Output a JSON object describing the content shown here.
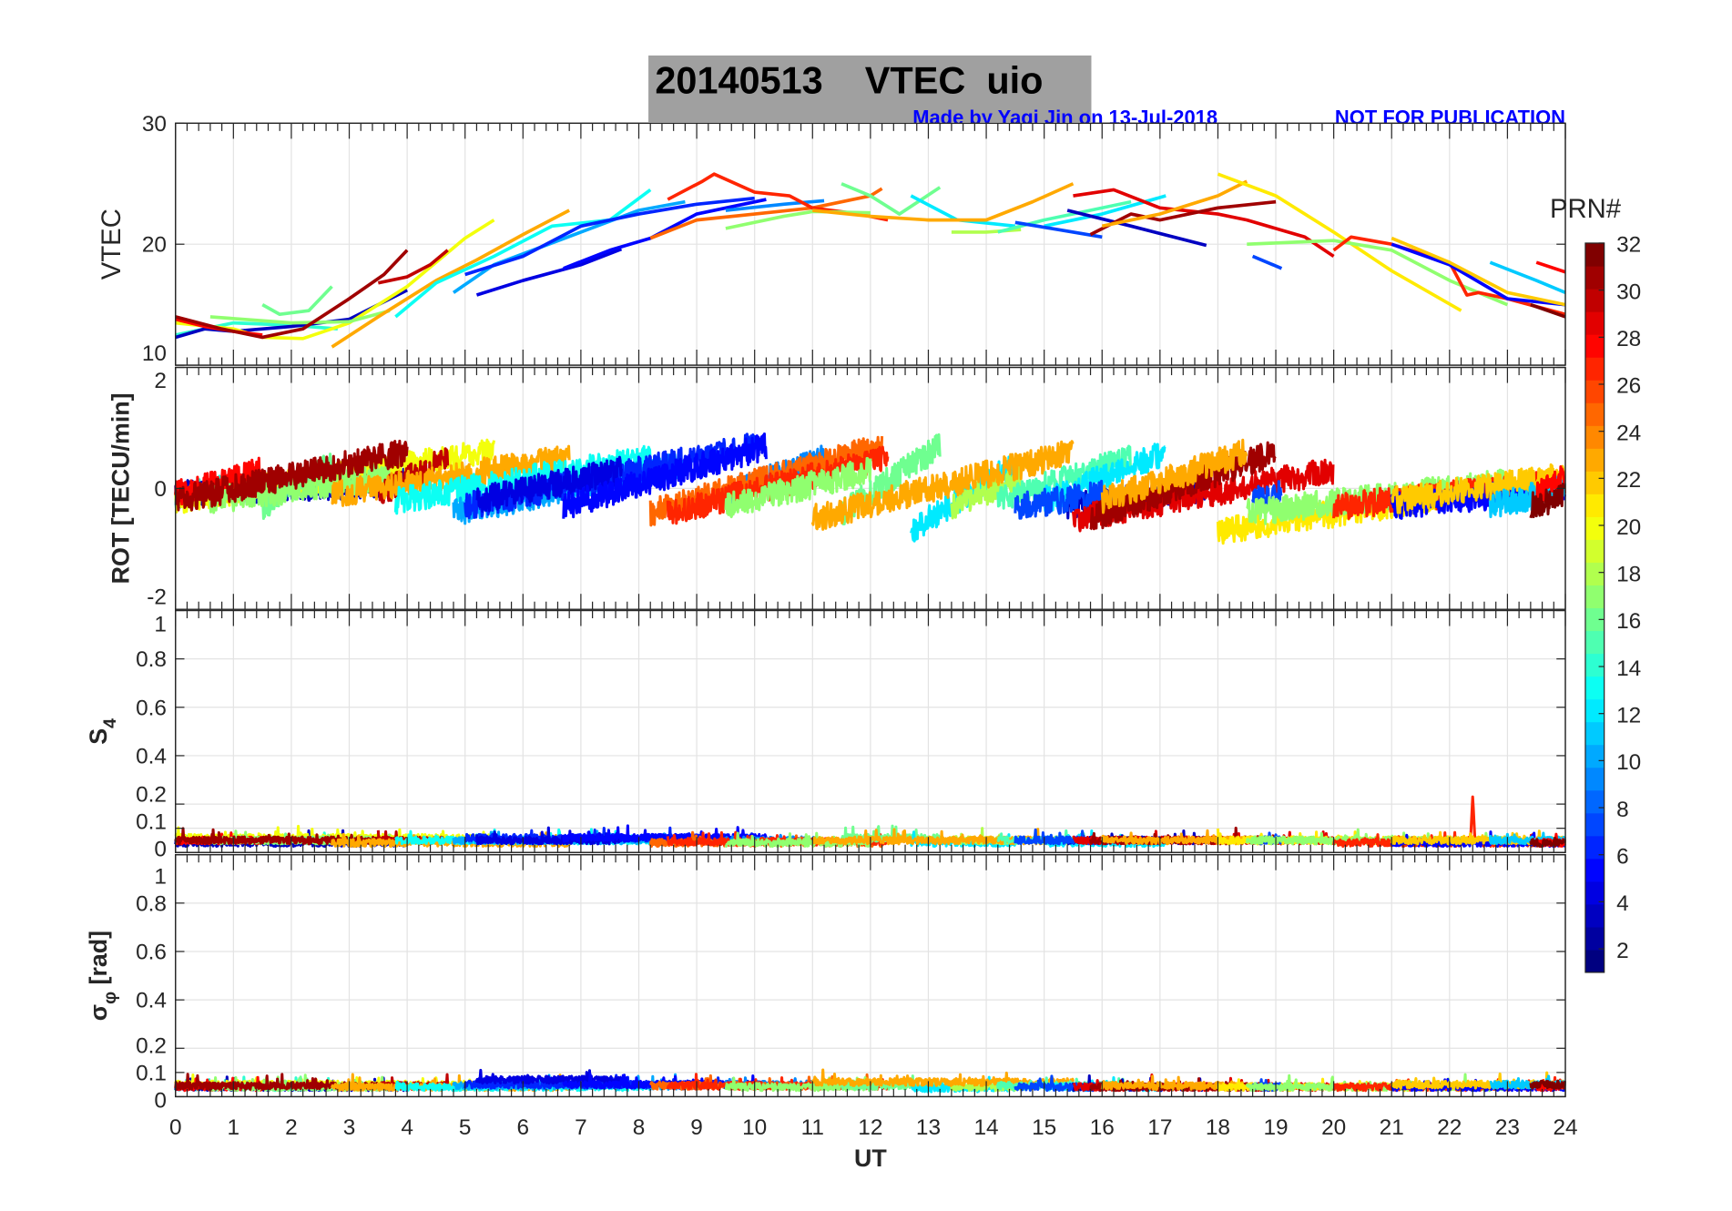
{
  "header": {
    "title": "20140513    VTEC  uio",
    "author_note": "Made by Yaqi Jin on 13-Jul-2018",
    "disclaimer": "NOT FOR PUBLICATION"
  },
  "colors": {
    "title_bg": "#a0a0a0",
    "note": "#0000ff",
    "grid": "#e3e3e3",
    "axis": "#262626"
  },
  "chart_data": {
    "type": "line",
    "title": "20140513    VTEC  uio",
    "xlabel": "UT",
    "xlim": [
      0,
      24
    ],
    "xticks": [
      0,
      1,
      2,
      3,
      4,
      5,
      6,
      7,
      8,
      9,
      10,
      11,
      12,
      13,
      14,
      15,
      16,
      17,
      18,
      19,
      20,
      21,
      22,
      23,
      24
    ],
    "grid": true,
    "colorbar": {
      "label": "PRN#",
      "range": [
        1,
        32
      ],
      "levels": 32,
      "colormap": "jet",
      "ticks": [
        2,
        4,
        6,
        8,
        10,
        12,
        14,
        16,
        18,
        20,
        22,
        24,
        26,
        28,
        30,
        32
      ],
      "placement": "right"
    },
    "panels": [
      {
        "id": "vtec",
        "ylabel": "VTEC",
        "ylim": [
          10,
          30
        ],
        "yticks": [
          10,
          20,
          30
        ]
      },
      {
        "id": "rot",
        "ylabel": "ROT [TECU/min]",
        "ylim": [
          -2,
          2
        ],
        "yticks": [
          -2,
          0,
          2
        ]
      },
      {
        "id": "s4",
        "ylabel": "S",
        "ylabel_sub": "4",
        "ylim": [
          0,
          1
        ],
        "yticks": [
          0,
          0.1,
          0.2,
          0.4,
          0.6,
          0.8,
          1
        ]
      },
      {
        "id": "sigma",
        "ylabel": "σ",
        "ylabel_sub": "φ",
        "ylabel_suffix": " [rad]",
        "ylim": [
          0,
          1
        ],
        "yticks": [
          0,
          0.1,
          0.2,
          0.4,
          0.6,
          0.8,
          1
        ]
      }
    ],
    "passes": [
      {
        "prn": 14,
        "vtec": [
          [
            0,
            12.5
          ],
          [
            1,
            13.5
          ],
          [
            2,
            13.3
          ],
          [
            2.8,
            13.0
          ]
        ],
        "rot": [
          -0.1,
          0.2
        ],
        "s4": 0.05,
        "sigma": 0.04
      },
      {
        "prn": 3,
        "vtec": [
          [
            0,
            12.3
          ],
          [
            0.5,
            13.0
          ],
          [
            1,
            12.8
          ],
          [
            2,
            13.2
          ],
          [
            3,
            13.8
          ],
          [
            4,
            16.2
          ]
        ],
        "rot": [
          -0.1,
          0.1
        ],
        "s4": 0.04,
        "sigma": 0.04
      },
      {
        "prn": 20,
        "vtec": [
          [
            0,
            13.5
          ],
          [
            1,
            13.0
          ],
          [
            1.5,
            12.3
          ],
          [
            2.2,
            12.2
          ],
          [
            3,
            13.5
          ],
          [
            4,
            16.5
          ],
          [
            5,
            20.5
          ],
          [
            5.5,
            22.0
          ]
        ],
        "rot": [
          -0.2,
          0.6
        ],
        "s4": 0.06,
        "sigma": 0.05
      },
      {
        "prn": 28,
        "vtec": [
          [
            0,
            13.8
          ],
          [
            0.5,
            13.2
          ],
          [
            1,
            12.8
          ],
          [
            1.5,
            12.5
          ]
        ],
        "rot": [
          -0.1,
          0.3
        ],
        "s4": 0.05,
        "sigma": 0.04
      },
      {
        "prn": 16,
        "vtec": [
          [
            1.5,
            15.0
          ],
          [
            1.8,
            14.2
          ],
          [
            2.3,
            14.5
          ],
          [
            2.7,
            16.5
          ]
        ],
        "rot": [
          -0.3,
          0.4
        ],
        "s4": 0.05,
        "sigma": 0.04
      },
      {
        "prn": 17,
        "vtec": [
          [
            0.6,
            14.0
          ],
          [
            2,
            13.5
          ],
          [
            3,
            13.6
          ],
          [
            3.7,
            14.5
          ]
        ],
        "rot": [
          -0.2,
          0.2
        ],
        "s4": 0.05,
        "sigma": 0.04
      },
      {
        "prn": 31,
        "vtec": [
          [
            0,
            14.0
          ],
          [
            0.8,
            13.0
          ],
          [
            1.5,
            12.3
          ],
          [
            2.2,
            13.0
          ],
          [
            3,
            15.5
          ],
          [
            3.6,
            17.5
          ],
          [
            4.0,
            19.5
          ]
        ],
        "rot": [
          -0.2,
          0.6
        ],
        "s4": 0.05,
        "sigma": 0.045
      },
      {
        "prn": 30,
        "vtec": [
          [
            3.5,
            16.8
          ],
          [
            4.0,
            17.3
          ],
          [
            4.4,
            18.3
          ],
          [
            4.7,
            19.5
          ]
        ],
        "rot": [
          -0.1,
          0.5
        ],
        "s4": 0.05,
        "sigma": 0.045
      },
      {
        "prn": 23,
        "vtec": [
          [
            2.7,
            11.5
          ],
          [
            3.5,
            14.0
          ],
          [
            4.5,
            17.0
          ],
          [
            5.2,
            18.7
          ],
          [
            6,
            20.8
          ],
          [
            6.8,
            22.8
          ]
        ],
        "rot": [
          -0.1,
          0.5
        ],
        "s4": 0.04,
        "sigma": 0.04
      },
      {
        "prn": 13,
        "vtec": [
          [
            3.8,
            14.0
          ],
          [
            4.5,
            16.8
          ],
          [
            5.5,
            19.0
          ],
          [
            6.5,
            21.5
          ],
          [
            7.5,
            22.0
          ],
          [
            8.2,
            24.5
          ]
        ],
        "rot": [
          -0.2,
          0.5
        ],
        "s4": 0.05,
        "sigma": 0.04
      },
      {
        "prn": 10,
        "vtec": [
          [
            4.8,
            16.0
          ],
          [
            5.5,
            18.3
          ],
          [
            7,
            21.0
          ],
          [
            8,
            22.8
          ],
          [
            8.8,
            23.5
          ]
        ],
        "rot": [
          -0.4,
          0.4
        ],
        "s4": 0.05,
        "sigma": 0.045
      },
      {
        "prn": 6,
        "vtec": [
          [
            5.0,
            17.5
          ],
          [
            6,
            19.0
          ],
          [
            7,
            21.5
          ],
          [
            8,
            22.5
          ],
          [
            9,
            23.3
          ],
          [
            10,
            23.8
          ]
        ],
        "rot": [
          -0.3,
          0.7
        ],
        "s4": 0.06,
        "sigma": 0.05
      },
      {
        "prn": 4,
        "vtec": [
          [
            5.2,
            15.8
          ],
          [
            6,
            17.0
          ],
          [
            7,
            18.3
          ],
          [
            7.7,
            19.6
          ]
        ],
        "rot": [
          -0.2,
          0.3
        ],
        "s4": 0.05,
        "sigma": 0.07
      },
      {
        "prn": 5,
        "vtec": [
          [
            6.7,
            18.0
          ],
          [
            7.5,
            19.5
          ],
          [
            8.2,
            20.5
          ],
          [
            9,
            22.5
          ],
          [
            10.2,
            23.7
          ]
        ],
        "rot": [
          -0.3,
          0.7
        ],
        "s4": 0.06,
        "sigma": 0.05
      },
      {
        "prn": 9,
        "vtec": [
          [
            9.5,
            22.8
          ],
          [
            10.5,
            23.3
          ],
          [
            11.2,
            23.6
          ]
        ],
        "rot": [
          -0.1,
          0.5
        ],
        "s4": 0.05,
        "sigma": 0.05
      },
      {
        "prn": 25,
        "vtec": [
          [
            8.2,
            20.5
          ],
          [
            9,
            22.0
          ],
          [
            10,
            22.5
          ],
          [
            11,
            23.0
          ],
          [
            12,
            24.0
          ],
          [
            12.2,
            24.6
          ]
        ],
        "rot": [
          -0.4,
          0.7
        ],
        "s4": 0.04,
        "sigma": 0.045
      },
      {
        "prn": 27,
        "vtec": [
          [
            8.5,
            23.7
          ],
          [
            9.1,
            25.2
          ],
          [
            9.3,
            25.8
          ],
          [
            10,
            24.3
          ],
          [
            10.6,
            24.0
          ],
          [
            11,
            23.0
          ],
          [
            11.8,
            22.5
          ],
          [
            12.3,
            22.0
          ]
        ],
        "rot": [
          -0.4,
          0.5
        ],
        "s4": 0.045,
        "sigma": 0.045
      },
      {
        "prn": 17,
        "vtec": [
          [
            9.5,
            21.3
          ],
          [
            10.5,
            22.3
          ],
          [
            11,
            22.7
          ],
          [
            12,
            22.6
          ]
        ],
        "rot": [
          -0.3,
          0.3
        ],
        "s4": 0.04,
        "sigma": 0.04
      },
      {
        "prn": 16,
        "vtec": [
          [
            11.5,
            25.0
          ],
          [
            12.0,
            24.0
          ],
          [
            12.5,
            22.5
          ],
          [
            13.2,
            24.7
          ]
        ],
        "rot": [
          -0.4,
          0.7
        ],
        "s4": 0.06,
        "sigma": 0.045
      },
      {
        "prn": 12,
        "vtec": [
          [
            12.7,
            24.0
          ],
          [
            13.5,
            22.0
          ],
          [
            14.5,
            21.5
          ]
        ],
        "rot": [
          -0.7,
          0.4
        ],
        "s4": 0.04,
        "sigma": 0.035
      },
      {
        "prn": 18,
        "vtec": [
          [
            13.4,
            21.0
          ],
          [
            14.0,
            21.0
          ],
          [
            14.6,
            21.2
          ]
        ],
        "rot": [
          -0.3,
          0.2
        ],
        "s4": 0.05,
        "sigma": 0.04
      },
      {
        "prn": 23,
        "vtec": [
          [
            11,
            22.8
          ],
          [
            12,
            22.3
          ],
          [
            13,
            22.0
          ],
          [
            14,
            22.0
          ],
          [
            14.8,
            23.5
          ],
          [
            15.5,
            25.0
          ]
        ],
        "rot": [
          -0.5,
          0.6
        ],
        "s4": 0.05,
        "sigma": 0.06
      },
      {
        "prn": 15,
        "vtec": [
          [
            14.2,
            21.0
          ],
          [
            15,
            22.0
          ],
          [
            16.5,
            23.5
          ]
        ],
        "rot": [
          -0.2,
          0.5
        ],
        "s4": 0.05,
        "sigma": 0.045
      },
      {
        "prn": 12,
        "vtec": [
          [
            15,
            21.5
          ],
          [
            16,
            22.5
          ],
          [
            17.1,
            24.0
          ]
        ],
        "rot": [
          -0.2,
          0.6
        ],
        "s4": 0.04,
        "sigma": 0.04
      },
      {
        "prn": 3,
        "vtec": [
          [
            15.4,
            22.8
          ],
          [
            16.5,
            21.5
          ],
          [
            17.8,
            19.9
          ]
        ],
        "rot": [
          -0.3,
          0.0
        ],
        "s4": 0.05,
        "sigma": 0.04
      },
      {
        "prn": 7,
        "vtec": [
          [
            14.5,
            21.8
          ],
          [
            15.5,
            21.0
          ],
          [
            16.0,
            20.6
          ]
        ],
        "rot": [
          -0.3,
          -0.1
        ],
        "s4": 0.05,
        "sigma": 0.04
      },
      {
        "prn": 29,
        "vtec": [
          [
            15.5,
            24.0
          ],
          [
            16.2,
            24.5
          ],
          [
            17,
            23.0
          ],
          [
            18,
            22.5
          ],
          [
            18.5,
            22.0
          ],
          [
            19.5,
            20.6
          ],
          [
            20,
            19.0
          ]
        ],
        "rot": [
          -0.5,
          0.3
        ],
        "s4": 0.05,
        "sigma": 0.04
      },
      {
        "prn": 31,
        "vtec": [
          [
            15.8,
            20.8
          ],
          [
            16.5,
            22.5
          ],
          [
            17,
            22.0
          ],
          [
            18,
            23.0
          ],
          [
            19,
            23.5
          ]
        ],
        "rot": [
          -0.5,
          0.6
        ],
        "s4": 0.05,
        "sigma": 0.04
      },
      {
        "prn": 23,
        "vtec": [
          [
            16,
            21.5
          ],
          [
            17,
            22.5
          ],
          [
            18,
            24.0
          ],
          [
            18.5,
            25.2
          ]
        ],
        "rot": [
          -0.2,
          0.6
        ],
        "s4": 0.05,
        "sigma": 0.045
      },
      {
        "prn": 21,
        "vtec": [
          [
            18,
            25.8
          ],
          [
            19,
            24.0
          ],
          [
            20,
            21.0
          ],
          [
            21,
            17.8
          ],
          [
            22.2,
            14.5
          ]
        ],
        "rot": [
          -0.7,
          -0.1
        ],
        "s4": 0.05,
        "sigma": 0.04
      },
      {
        "prn": 7,
        "vtec": [
          [
            18.6,
            19.0
          ],
          [
            19.1,
            18.0
          ]
        ],
        "rot": [
          -0.2,
          -0.1
        ],
        "s4": 0.05,
        "sigma": 0.04
      },
      {
        "prn": 17,
        "vtec": [
          [
            18.5,
            20.0
          ],
          [
            19.5,
            20.2
          ],
          [
            20,
            20.3
          ],
          [
            21,
            19.5
          ],
          [
            22,
            17.0
          ],
          [
            23,
            15.0
          ]
        ],
        "rot": [
          -0.4,
          0.1
        ],
        "s4": 0.05,
        "sigma": 0.04
      },
      {
        "prn": 27,
        "vtec": [
          [
            20,
            19.5
          ],
          [
            20.3,
            20.6
          ],
          [
            21,
            20.0
          ],
          [
            22,
            18.5
          ],
          [
            22.3,
            15.8
          ],
          [
            22.5,
            16.0
          ],
          [
            23,
            15.5
          ],
          [
            24,
            14.2
          ]
        ],
        "rot": [
          -0.3,
          0.1
        ],
        "s4": 0.04,
        "sigma": 0.04,
        "s4_spike": [
          22.4,
          0.23
        ]
      },
      {
        "prn": 5,
        "vtec": [
          [
            21,
            20.0
          ],
          [
            22,
            18.3
          ],
          [
            23,
            15.5
          ],
          [
            24,
            15.0
          ]
        ],
        "rot": [
          -0.3,
          0.0
        ],
        "s4": 0.04,
        "sigma": 0.04
      },
      {
        "prn": 22,
        "vtec": [
          [
            21,
            20.5
          ],
          [
            22,
            18.5
          ],
          [
            23,
            16.0
          ],
          [
            24,
            15.0
          ]
        ],
        "rot": [
          -0.2,
          0.2
        ],
        "s4": 0.05,
        "sigma": 0.05
      },
      {
        "prn": 11,
        "vtec": [
          [
            22.7,
            18.5
          ],
          [
            23.5,
            17.0
          ],
          [
            24,
            16.0
          ]
        ],
        "rot": [
          -0.3,
          0.0
        ],
        "s4": 0.05,
        "sigma": 0.05
      },
      {
        "prn": 28,
        "vtec": [
          [
            23.5,
            18.5
          ],
          [
            24,
            17.7
          ]
        ],
        "rot": [
          -0.1,
          0.2
        ],
        "s4": 0.04,
        "sigma": 0.04
      },
      {
        "prn": 32,
        "vtec": [
          [
            23.4,
            15.0
          ],
          [
            24,
            14.0
          ]
        ],
        "rot": [
          -0.3,
          -0.1
        ],
        "s4": 0.04,
        "sigma": 0.05
      }
    ]
  }
}
